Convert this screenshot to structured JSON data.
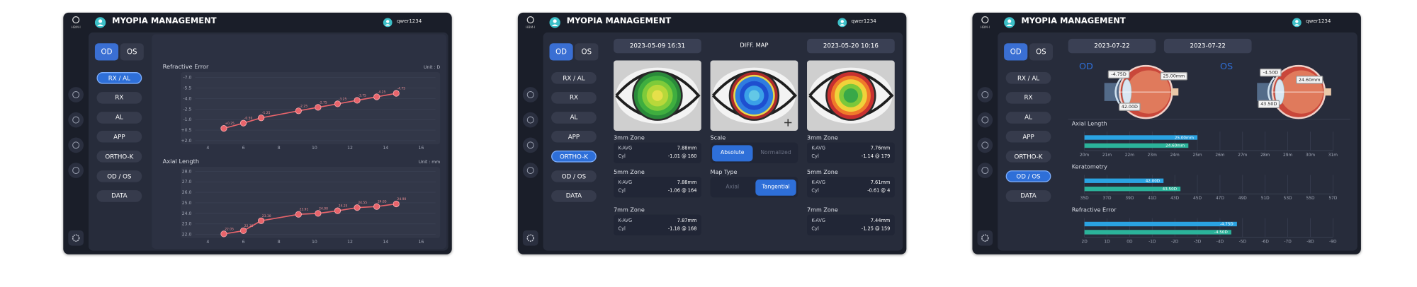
{
  "screens": [
    {
      "header": {
        "logo": "HBM-I",
        "title": "MYOPIA MANAGEMENT",
        "user": "qwer1234"
      },
      "eye_tabs": [
        "OD",
        "OS"
      ],
      "active_eye": 0,
      "menu": [
        "RX / AL",
        "RX",
        "AL",
        "APP",
        "ORTHO-K",
        "OD / OS",
        "DATA"
      ],
      "active_menu": 0,
      "charts": [
        {
          "type": "line",
          "title": "Refractive Error",
          "unit": "Unit : D",
          "color": "#e8646b",
          "x": [
            4.9,
            6,
            7,
            9.1,
            10.2,
            11.3,
            12.4,
            13.5,
            14.6
          ],
          "values": [
            0.25,
            -0.5,
            -1.25,
            -2.25,
            -2.75,
            -3.25,
            -3.75,
            -4.25,
            -4.75
          ],
          "value_labels": [
            "+0.25",
            "-0.50",
            "-1.25",
            "-2.25",
            "-2.75",
            "-3.25",
            "-3.75",
            "-4.25",
            "-4.75"
          ],
          "xlim": [
            4,
            16
          ],
          "xticks": [
            4,
            6,
            8,
            10,
            12,
            14,
            16
          ],
          "ylim": [
            2,
            -7
          ],
          "yticks": [
            {
              "value": -7,
              "label": "-7.0"
            },
            -5.5,
            {
              "value": -4,
              "label": "-4.0"
            },
            -2.5,
            {
              "value": -1,
              "label": "-1.0"
            },
            {
              "value": 0.5,
              "label": "+0.5"
            },
            {
              "value": 2,
              "label": "+2.0"
            }
          ],
          "grid": true
        },
        {
          "type": "line",
          "title": "Axial Length",
          "unit": "Unit : mm",
          "color": "#e8646b",
          "x": [
            4.9,
            6,
            7,
            9.1,
            10.2,
            11.3,
            12.4,
            13.5,
            14.6
          ],
          "values": [
            22.05,
            22.35,
            23.3,
            23.91,
            24,
            24.25,
            24.55,
            24.65,
            24.9
          ],
          "value_labels": [
            "22.05",
            "22.35",
            "23.30",
            "23.91",
            "24.00",
            "24.25",
            "24.55",
            "24.65",
            "24.90"
          ],
          "xlim": [
            4,
            16
          ],
          "xticks": [
            4,
            6,
            8,
            10,
            12,
            14,
            16
          ],
          "ylim": [
            22,
            28
          ],
          "yticks": [
            {
              "value": 28,
              "label": "28.0"
            },
            {
              "value": 27,
              "label": "27.0"
            },
            {
              "value": 26,
              "label": "26.0"
            },
            {
              "value": 25,
              "label": "25.0"
            },
            {
              "value": 24,
              "label": "24.0"
            },
            {
              "value": 23,
              "label": "23.0"
            },
            {
              "value": 22,
              "label": "22.0"
            }
          ],
          "grid": true
        }
      ]
    },
    {
      "header": {
        "logo": "HBM-I",
        "title": "MYOPIA MANAGEMENT",
        "user": "qwer1234"
      },
      "eye_tabs": [
        "OD",
        "OS"
      ],
      "active_eye": 0,
      "menu": [
        "RX / AL",
        "RX",
        "AL",
        "APP",
        "ORTHO-K",
        "OD / OS",
        "DATA"
      ],
      "active_menu": 4,
      "dates": [
        "2023-05-09 16:31",
        "2023-05-20 10:16"
      ],
      "diff_label": "DIFF. MAP",
      "maps": [
        {
          "zones": [
            {
              "name": "3mm Zone",
              "k_label": "K-AVG",
              "k": "7.88mm",
              "cyl_label": "Cyl",
              "cyl": "-1.01 @ 160"
            },
            {
              "name": "5mm Zone",
              "k_label": "K-AVG",
              "k": "7.88mm",
              "cyl_label": "Cyl",
              "cyl": "-1.06 @ 164"
            },
            {
              "name": "7mm Zone",
              "k_label": "K-AVG",
              "k": "7.87mm",
              "cyl_label": "Cyl",
              "cyl": "-1.18 @ 168"
            }
          ]
        },
        {
          "zones": [
            {
              "name": "3mm Zone",
              "k_label": "K-AVG",
              "k": "7.76mm",
              "cyl_label": "Cyl",
              "cyl": "-1.14 @ 179"
            },
            {
              "name": "5mm Zone",
              "k_label": "K-AVG",
              "k": "7.61mm",
              "cyl_label": "Cyl",
              "cyl": "-0.61 @ 4"
            },
            {
              "name": "7mm Zone",
              "k_label": "K-AVG",
              "k": "7.44mm",
              "cyl_label": "Cyl",
              "cyl": "-1.25 @ 159"
            }
          ]
        }
      ],
      "scale": {
        "label": "Scale",
        "options": [
          "Absolute",
          "Normalized"
        ],
        "active": 0
      },
      "map_type": {
        "label": "Map Type",
        "options": [
          "Axial",
          "Tangential"
        ],
        "active": 1
      }
    },
    {
      "header": {
        "logo": "HBM-I",
        "title": "MYOPIA MANAGEMENT",
        "user": "qwer1234"
      },
      "eye_tabs": [
        "OD",
        "OS"
      ],
      "active_eye": 0,
      "menu": [
        "RX / AL",
        "RX",
        "AL",
        "APP",
        "ORTHO-K",
        "OD / OS",
        "DATA"
      ],
      "active_menu": 5,
      "dates": [
        "2023-07-22",
        "2023-07-22"
      ],
      "eyes": [
        {
          "name": "OD",
          "refraction": "-4.75D",
          "axial": "25.00mm",
          "k": "42.00D"
        },
        {
          "name": "OS",
          "refraction": "-4.50D",
          "axial": "24.60mm",
          "k": "43.50D"
        }
      ],
      "charts": [
        {
          "type": "hbar",
          "title": "Axial Length",
          "colors": [
            "#2aa3e2",
            "#2bb39a"
          ],
          "values": [
            25,
            24.6
          ],
          "value_labels": [
            "25.00mm",
            "24.60mm"
          ],
          "xlim": [
            20,
            31
          ],
          "grid": true,
          "xticks": [
            {
              "value": 20,
              "label": "20m"
            },
            {
              "value": 21,
              "label": "21m"
            },
            {
              "value": 22,
              "label": "22m"
            },
            {
              "value": 23,
              "label": "23m"
            },
            {
              "value": 24,
              "label": "24m"
            },
            {
              "value": 25,
              "label": "25m"
            },
            {
              "value": 26,
              "label": "26m"
            },
            {
              "value": 27,
              "label": "27m"
            },
            {
              "value": 28,
              "label": "28m"
            },
            {
              "value": 29,
              "label": "29m"
            },
            {
              "value": 30,
              "label": "30m"
            },
            {
              "value": 31,
              "label": "31m"
            }
          ]
        },
        {
          "type": "hbar",
          "title": "Keratometry",
          "colors": [
            "#2aa3e2",
            "#2bb39a"
          ],
          "values": [
            42,
            43.5
          ],
          "value_labels": [
            "42.00D",
            "43.50D"
          ],
          "xlim": [
            35,
            57
          ],
          "grid": true,
          "xticks": [
            {
              "value": 35,
              "label": "35D"
            },
            {
              "value": 37,
              "label": "37D"
            },
            {
              "value": 39,
              "label": "39D"
            },
            {
              "value": 41,
              "label": "41D"
            },
            {
              "value": 43,
              "label": "43D"
            },
            {
              "value": 45,
              "label": "45D"
            },
            {
              "value": 47,
              "label": "47D"
            },
            {
              "value": 49,
              "label": "49D"
            },
            {
              "value": 51,
              "label": "51D"
            },
            {
              "value": 53,
              "label": "53D"
            },
            {
              "value": 55,
              "label": "55D"
            },
            {
              "value": 57,
              "label": "57D"
            }
          ]
        },
        {
          "type": "hbar",
          "title": "Refractive Error",
          "colors": [
            "#2aa3e2",
            "#2bb39a"
          ],
          "values": [
            -4.75,
            -4.5
          ],
          "value_labels": [
            "-4.75D",
            "-4.50D"
          ],
          "xlim": [
            2,
            -9
          ],
          "grid": true,
          "xticks": [
            {
              "value": 2,
              "label": "2D"
            },
            {
              "value": 1,
              "label": "1D"
            },
            {
              "value": 0,
              "label": "0D"
            },
            {
              "value": -1,
              "label": "-1D"
            },
            {
              "value": -2,
              "label": "-2D"
            },
            {
              "value": -3,
              "label": "-3D"
            },
            {
              "value": -4,
              "label": "-4D"
            },
            {
              "value": -5,
              "label": "-5D"
            },
            {
              "value": -6,
              "label": "-6D"
            },
            {
              "value": -7,
              "label": "-7D"
            },
            {
              "value": -8,
              "label": "-8D"
            },
            {
              "value": -9,
              "label": "-9D"
            }
          ]
        }
      ]
    }
  ]
}
